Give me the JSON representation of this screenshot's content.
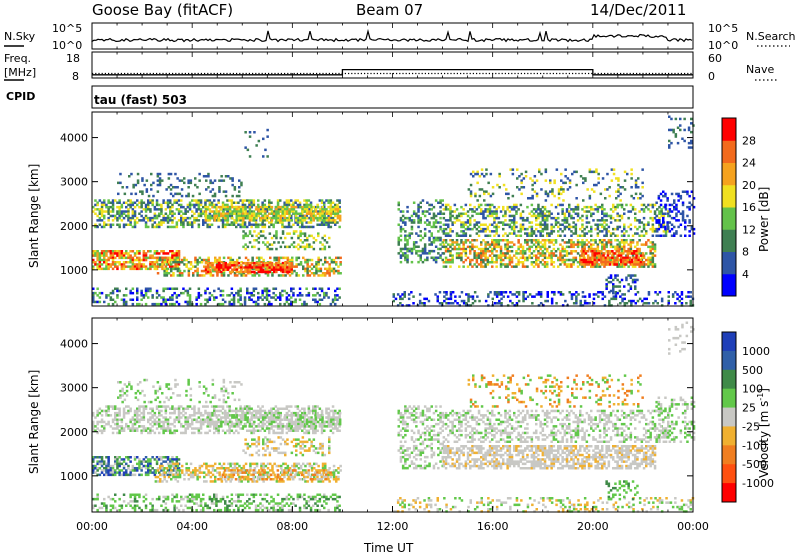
{
  "header": {
    "station": "Goose Bay (fitACF)",
    "beam": "Beam 07",
    "date": "14/Dec/2011"
  },
  "top_panels": {
    "nsky_label": "N.Sky",
    "nsky_ticks": [
      "10^5",
      "10^0"
    ],
    "nsearch_label": "N.Search",
    "nsearch_ticks": [
      "10^5",
      "10^0"
    ],
    "freq_label": "Freq.",
    "freq_unit": "[MHz]",
    "freq_ticks": [
      "18",
      "8"
    ],
    "nave_label": "Nave",
    "nave_ticks": [
      "60",
      "0"
    ],
    "cpid_label": "CPID",
    "cpid_text": "tau (fast) 503"
  },
  "chart_data": [
    {
      "type": "heatmap",
      "name": "power",
      "ylabel": "Slant Range [km]",
      "yticks": [
        "1000",
        "2000",
        "3000",
        "4000"
      ],
      "ylim": [
        180,
        4580
      ],
      "xlim_hours": [
        0,
        24
      ],
      "colorbar_label": "Power [dB]",
      "colorbar_ticks": [
        "4",
        "8",
        "12",
        "16",
        "20",
        "24",
        "28"
      ],
      "colors": [
        "#0000ff",
        "#2e55a6",
        "#3f7f52",
        "#63c24a",
        "#f0e020",
        "#f5a21e",
        "#f26a1c",
        "#ff0000"
      ]
    },
    {
      "type": "heatmap",
      "name": "velocity",
      "ylabel": "Slant Range [km]",
      "yticks": [
        "1000",
        "2000",
        "3000",
        "4000"
      ],
      "ylim": [
        180,
        4580
      ],
      "xlim_hours": [
        0,
        24
      ],
      "colorbar_label": "Velocity [m s",
      "colorbar_label_sup": "-1",
      "colorbar_label_end": "]",
      "colorbar_ticks": [
        "1000",
        "500",
        "100",
        "25",
        "-25",
        "-100",
        "-500",
        "-1000"
      ],
      "colors": [
        "#1f3fb8",
        "#3060a8",
        "#3f8a48",
        "#62c84a",
        "#c8c8c4",
        "#f0b030",
        "#f07e20",
        "#ff5010",
        "#ff0000"
      ]
    }
  ],
  "time_axis": {
    "ticks": [
      "00:00",
      "04:00",
      "08:00",
      "12:00",
      "16:00",
      "20:00",
      "00:00"
    ],
    "label": "Time UT"
  },
  "frequency_series": {
    "low_mhz": 10,
    "high_mhz": 12,
    "switch_hours": [
      10,
      20
    ]
  }
}
